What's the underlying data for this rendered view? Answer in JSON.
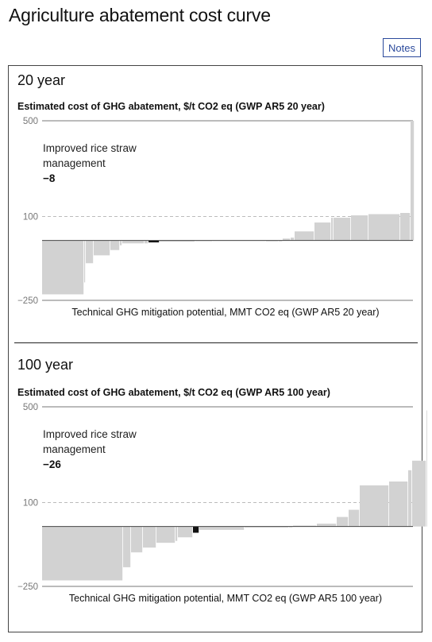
{
  "page": {
    "title": "Agriculture abatement cost curve",
    "notes_label": "Notes"
  },
  "colors": {
    "bar": "#d2d2d2",
    "highlight": "#111111",
    "axis": "#777777",
    "grid": "#bbbbbb",
    "tick_text": "#777777"
  },
  "chart_data": [
    {
      "type": "bar",
      "panel_title": "20 year",
      "title": "Estimated cost of GHG abatement, $/t CO2 eq (GWP AR5 20 year)",
      "xlabel": "Technical GHG mitigation potential, MMT CO2 eq (GWP AR5 20 year)",
      "ylabel": "Estimated cost of GHG abatement, $/t CO2 eq",
      "ylim": [
        -250,
        500
      ],
      "y_ticks": [
        500,
        100,
        -250
      ],
      "y_tick_labels": [
        "500",
        "100",
        "−250"
      ],
      "bar_widths": [
        53,
        2,
        10,
        21,
        12,
        3,
        28,
        5,
        14,
        45,
        22,
        67,
        16,
        5,
        10,
        5,
        25,
        21,
        3,
        22,
        22,
        40,
        13,
        5
      ],
      "values": [
        -225,
        -175,
        -95,
        -62,
        -40,
        -20,
        -12,
        -12,
        -8,
        -5,
        -3,
        -2,
        0,
        0,
        8,
        12,
        38,
        75,
        95,
        95,
        105,
        110,
        115,
        500
      ],
      "highlight_index": 8,
      "annotation": {
        "name_line1": "Improved rice straw",
        "name_line2": "management",
        "value": "−8"
      }
    },
    {
      "type": "bar",
      "panel_title": "100 year",
      "title": "Estimated cost of GHG abatement, $/t CO2 eq (GWP AR5 100 year)",
      "xlabel": "Technical GHG mitigation potential, MMT CO2 eq (GWP AR5 100 year)",
      "ylabel": "Estimated cost of GHG abatement, $/t CO2 eq",
      "ylim": [
        -250,
        500
      ],
      "y_ticks": [
        500,
        100,
        -250
      ],
      "y_tick_labels": [
        "500",
        "100",
        "−250"
      ],
      "bar_widths": [
        102,
        10,
        15,
        17,
        24,
        3,
        19,
        8,
        57,
        56,
        5,
        30,
        25,
        15,
        14,
        37,
        24,
        5,
        18,
        1
      ],
      "values": [
        -225,
        -170,
        -108,
        -88,
        -68,
        -60,
        -45,
        -26,
        -14,
        -4,
        0,
        4,
        12,
        40,
        70,
        172,
        188,
        235,
        275,
        485
      ],
      "highlight_index": 7,
      "annotation": {
        "name_line1": "Improved rice straw",
        "name_line2": "management",
        "value": "−26"
      }
    }
  ]
}
